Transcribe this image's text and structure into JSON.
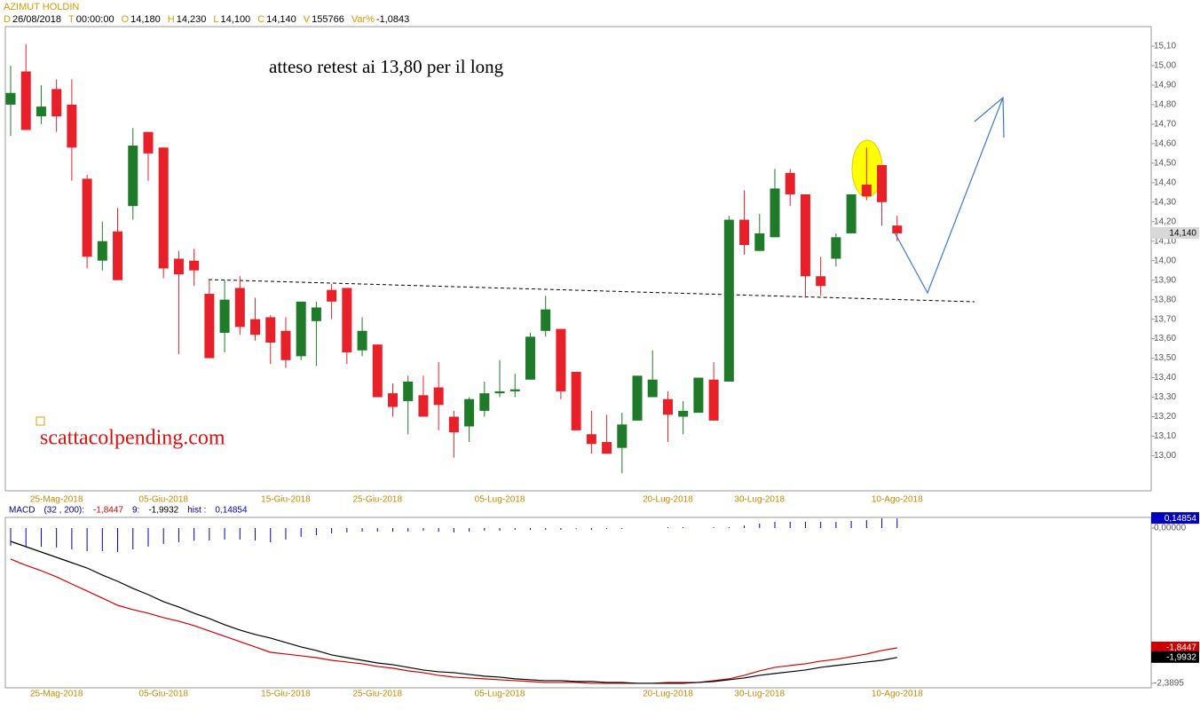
{
  "chart_data": [
    {
      "type": "candlestick",
      "header": {
        "title": "AZIMUT HOLDIN",
        "fields": [
          {
            "key": "D",
            "value": "26/08/2018"
          },
          {
            "key": "T",
            "value": "00:00:00"
          },
          {
            "key": "O",
            "value": "14,180"
          },
          {
            "key": "H",
            "value": "14,230"
          },
          {
            "key": "L",
            "value": "14,100"
          },
          {
            "key": "C",
            "value": "14,140"
          },
          {
            "key": "V",
            "value": "155766"
          },
          {
            "key": "Var%",
            "value": "-1,0843"
          }
        ]
      },
      "annotations": [
        "atteso retest ai 13,80 per il long",
        "scattacolpending.com"
      ],
      "categories": [
        null,
        null,
        null,
        "25-Mag-2018",
        null,
        null,
        null,
        null,
        null,
        null,
        "05-Giu-2018",
        null,
        null,
        null,
        null,
        null,
        null,
        null,
        "15-Giu-2018",
        null,
        null,
        null,
        null,
        null,
        "25-Giu-2018",
        null,
        null,
        null,
        null,
        null,
        null,
        null,
        "05-Lug-2018",
        null,
        null,
        null,
        null,
        null,
        null,
        null,
        null,
        null,
        null,
        "20-Lug-2018",
        null,
        null,
        null,
        null,
        null,
        "30-Lug-2018",
        null,
        null,
        null,
        null,
        null,
        null,
        null,
        null,
        "10-Ago-2018"
      ],
      "open": [
        14.8,
        14.97,
        14.74,
        14.88,
        14.8,
        14.42,
        14.0,
        14.15,
        14.28,
        14.66,
        14.58,
        14.01,
        14.0,
        13.83,
        13.63,
        13.86,
        13.7,
        13.71,
        13.64,
        13.51,
        13.69,
        13.85,
        13.86,
        13.54,
        13.57,
        13.32,
        13.28,
        13.31,
        13.35,
        13.2,
        13.15,
        13.23,
        13.32,
        13.33,
        13.39,
        13.64,
        13.65,
        13.43,
        13.11,
        13.07,
        13.04,
        13.18,
        13.3,
        13.29,
        13.2,
        13.22,
        13.39,
        13.38,
        14.21,
        14.05,
        14.12,
        14.45,
        14.34,
        13.92,
        14.01,
        14.14,
        14.39,
        14.49,
        14.18
      ],
      "high": [
        15.0,
        15.11,
        14.9,
        14.93,
        14.93,
        14.44,
        14.2,
        14.27,
        14.68,
        14.66,
        14.58,
        14.05,
        14.06,
        13.9,
        13.9,
        13.92,
        13.81,
        13.72,
        13.71,
        13.79,
        13.79,
        13.88,
        13.86,
        13.71,
        13.57,
        13.37,
        13.41,
        13.41,
        13.48,
        13.23,
        13.3,
        13.38,
        13.49,
        13.42,
        13.63,
        13.82,
        13.65,
        13.43,
        13.23,
        13.21,
        13.22,
        13.41,
        13.54,
        13.33,
        13.28,
        13.4,
        13.48,
        14.23,
        14.36,
        14.24,
        14.47,
        14.47,
        14.34,
        14.02,
        14.14,
        14.34,
        14.58,
        14.49,
        14.23
      ],
      "low": [
        14.64,
        14.67,
        14.7,
        14.66,
        14.41,
        13.96,
        13.95,
        13.9,
        14.21,
        14.41,
        13.91,
        13.52,
        13.87,
        13.5,
        13.53,
        13.62,
        13.59,
        13.47,
        13.45,
        13.49,
        13.46,
        13.7,
        13.47,
        13.51,
        13.3,
        13.2,
        13.11,
        13.2,
        13.13,
        12.99,
        13.07,
        13.2,
        13.3,
        13.3,
        13.39,
        13.61,
        13.29,
        13.13,
        13.01,
        13.01,
        12.91,
        13.18,
        13.3,
        13.07,
        13.11,
        13.22,
        13.18,
        13.38,
        14.03,
        14.05,
        14.12,
        14.28,
        13.81,
        13.82,
        13.97,
        14.14,
        14.31,
        14.18,
        14.1
      ],
      "close": [
        14.86,
        14.67,
        14.79,
        14.74,
        14.58,
        14.02,
        14.1,
        13.9,
        14.59,
        14.55,
        13.96,
        13.93,
        13.95,
        13.5,
        13.8,
        13.66,
        13.62,
        13.58,
        13.49,
        13.79,
        13.76,
        13.79,
        13.53,
        13.64,
        13.3,
        13.25,
        13.38,
        13.2,
        13.26,
        13.12,
        13.29,
        13.32,
        13.33,
        13.34,
        13.61,
        13.75,
        13.33,
        13.13,
        13.06,
        13.01,
        13.16,
        13.41,
        13.39,
        13.21,
        13.23,
        13.4,
        13.18,
        14.21,
        14.08,
        14.14,
        14.37,
        14.34,
        13.92,
        13.87,
        14.12,
        14.34,
        14.33,
        14.3,
        14.14
      ],
      "up_color": "#1f7a2a",
      "down_color": "#e8202a",
      "last": {
        "value": 14.14,
        "label": "14,140"
      },
      "ylim": [
        12.82,
        15.2
      ],
      "yticks": [
        {
          "value": 13.0,
          "label": "13,00"
        },
        {
          "value": 13.1,
          "label": "13,10"
        },
        {
          "value": 13.2,
          "label": "13,20"
        },
        {
          "value": 13.3,
          "label": "13,30"
        },
        {
          "value": 13.4,
          "label": "13,40"
        },
        {
          "value": 13.5,
          "label": "13,50"
        },
        {
          "value": 13.6,
          "label": "13,60"
        },
        {
          "value": 13.7,
          "label": "13,70"
        },
        {
          "value": 13.8,
          "label": "13,80"
        },
        {
          "value": 13.9,
          "label": "13,90"
        },
        {
          "value": 14.0,
          "label": "14,00"
        },
        {
          "value": 14.1,
          "label": "14,10"
        },
        {
          "value": 14.2,
          "label": "14,20"
        },
        {
          "value": 14.3,
          "label": "14,30"
        },
        {
          "value": 14.4,
          "label": "14,40"
        },
        {
          "value": 14.5,
          "label": "14,50"
        },
        {
          "value": 14.6,
          "label": "14,60"
        },
        {
          "value": 14.7,
          "label": "14,70"
        },
        {
          "value": 14.8,
          "label": "14,80"
        },
        {
          "value": 14.9,
          "label": "14,90"
        },
        {
          "value": 15.0,
          "label": "15,00"
        },
        {
          "value": 15.1,
          "label": "15,10"
        }
      ]
    },
    {
      "type": "macd",
      "legend": [
        {
          "text": "MACD",
          "color": "#000080"
        },
        {
          "text": "(32 , 200):",
          "color": "#000080"
        },
        {
          "text": "-1,8447",
          "color": "#d00000"
        },
        {
          "text": "9:",
          "color": "#000080"
        },
        {
          "text": "-1,9932",
          "color": "#000000"
        },
        {
          "text": "hist :",
          "color": "#000080"
        },
        {
          "text": "0,14854",
          "color": "#0000c0"
        }
      ],
      "categories": [
        null,
        null,
        null,
        "25-Mag-2018",
        null,
        null,
        null,
        null,
        null,
        null,
        "05-Giu-2018",
        null,
        null,
        null,
        null,
        null,
        null,
        null,
        "15-Giu-2018",
        null,
        null,
        null,
        null,
        null,
        "25-Giu-2018",
        null,
        null,
        null,
        null,
        null,
        null,
        null,
        "05-Lug-2018",
        null,
        null,
        null,
        null,
        null,
        null,
        null,
        null,
        null,
        null,
        "20-Lug-2018",
        null,
        null,
        null,
        null,
        null,
        "30-Lug-2018",
        null,
        null,
        null,
        null,
        null,
        null,
        null,
        null,
        "10-Ago-2018"
      ],
      "histogram": {
        "color": "#0000c0",
        "last_label": "0,14854",
        "values": [
          -0.273,
          -0.287,
          -0.287,
          -0.3,
          -0.328,
          -0.355,
          -0.355,
          -0.369,
          -0.328,
          -0.286,
          -0.246,
          -0.218,
          -0.192,
          -0.192,
          -0.178,
          -0.178,
          -0.192,
          -0.219,
          -0.178,
          -0.136,
          -0.11,
          -0.082,
          -0.068,
          -0.054,
          -0.054,
          -0.054,
          -0.054,
          -0.041,
          -0.055,
          -0.068,
          -0.055,
          -0.041,
          -0.041,
          -0.028,
          -0.027,
          -0.027,
          -0.027,
          -0.014,
          -0.028,
          -0.014,
          -0.014,
          0,
          0,
          0.014,
          0.014,
          0,
          0.013,
          0.014,
          0.041,
          0.069,
          0.095,
          0.096,
          0.096,
          0.096,
          0.095,
          0.109,
          0.123,
          0.151,
          0.14854
        ]
      },
      "series": [
        {
          "color": "#d00000",
          "last_label": "-1,8447",
          "values": [
            -0.478,
            -0.574,
            -0.656,
            -0.751,
            -0.861,
            -0.97,
            -1.079,
            -1.189,
            -1.257,
            -1.311,
            -1.38,
            -1.434,
            -1.503,
            -1.585,
            -1.667,
            -1.749,
            -1.831,
            -1.913,
            -1.94,
            -1.967,
            -1.995,
            -2.036,
            -2.063,
            -2.09,
            -2.131,
            -2.158,
            -2.199,
            -2.227,
            -2.268,
            -2.295,
            -2.309,
            -2.322,
            -2.336,
            -2.35,
            -2.363,
            -2.377,
            -2.377,
            -2.377,
            -2.391,
            -2.391,
            -2.391,
            -2.391,
            -2.391,
            -2.377,
            -2.377,
            -2.377,
            -2.35,
            -2.322,
            -2.268,
            -2.199,
            -2.145,
            -2.117,
            -2.09,
            -2.049,
            -2.022,
            -1.981,
            -1.94,
            -1.885,
            -1.8447
          ]
        },
        {
          "color": "#000000",
          "last_label": "-1,9932",
          "values": [
            -0.205,
            -0.287,
            -0.369,
            -0.451,
            -0.533,
            -0.615,
            -0.724,
            -0.82,
            -0.929,
            -1.025,
            -1.134,
            -1.216,
            -1.311,
            -1.393,
            -1.489,
            -1.571,
            -1.639,
            -1.694,
            -1.762,
            -1.831,
            -1.885,
            -1.954,
            -1.995,
            -2.036,
            -2.077,
            -2.104,
            -2.145,
            -2.186,
            -2.213,
            -2.227,
            -2.254,
            -2.281,
            -2.295,
            -2.322,
            -2.336,
            -2.35,
            -2.35,
            -2.363,
            -2.363,
            -2.377,
            -2.377,
            -2.391,
            -2.391,
            -2.391,
            -2.391,
            -2.377,
            -2.363,
            -2.336,
            -2.309,
            -2.268,
            -2.24,
            -2.213,
            -2.186,
            -2.145,
            -2.117,
            -2.09,
            -2.063,
            -2.036,
            -1.9932
          ]
        }
      ],
      "ylim": [
        -2.46,
        0.164
      ],
      "yticks": [
        {
          "value": 0,
          "label": "0,00000"
        },
        {
          "value": -2.3895,
          "label": "-2,3895"
        }
      ]
    }
  ]
}
